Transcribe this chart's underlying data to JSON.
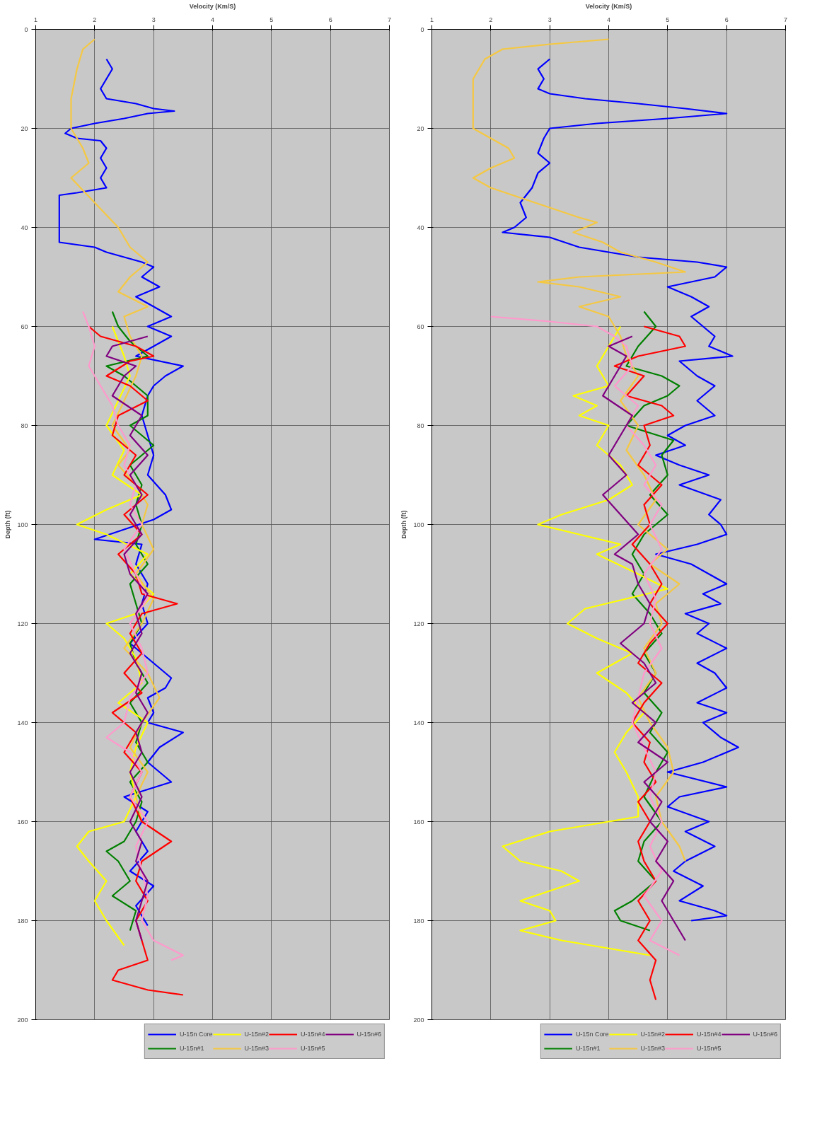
{
  "chart_data": [
    {
      "type": "line",
      "xlabel": "Velocity (Km/S)",
      "ylabel": "Depth (ft)",
      "xlim": [
        1,
        7
      ],
      "ylim": [
        200,
        0
      ],
      "xticks": [
        1,
        2,
        3,
        4,
        5,
        6,
        7
      ],
      "yticks": [
        0,
        20,
        40,
        60,
        80,
        100,
        120,
        140,
        160,
        180,
        200
      ],
      "grid": true,
      "legend": "bottom",
      "marker": "none",
      "line_style": "solid",
      "series": [
        {
          "name": "U-15n Core",
          "color": "#0000ff",
          "x": [
            2.2,
            2.3,
            2.2,
            2.1,
            2.2,
            2.7,
            3.0,
            3.35,
            2.9,
            2.5,
            2.0,
            1.6,
            1.5,
            1.7,
            2.1,
            2.2,
            2.1,
            2.2,
            2.1,
            2.2,
            1.7,
            1.4,
            1.4,
            1.4,
            1.4,
            2.0,
            2.2,
            2.8,
            3.0,
            2.8,
            3.1,
            2.7,
            3.0,
            3.3,
            2.9,
            3.3,
            3.0,
            2.7,
            3.5,
            3.2,
            3.0,
            2.9,
            2.8,
            2.9,
            3.0,
            2.9,
            3.2,
            3.3,
            3.0,
            2.5,
            2.0,
            2.8,
            2.7,
            2.9,
            2.8,
            2.9,
            2.6,
            3.0,
            3.3,
            3.2,
            2.9,
            3.0,
            2.9,
            3.5,
            3.1,
            2.9,
            3.3,
            2.5,
            2.9,
            2.7,
            2.9,
            2.6,
            3.0,
            2.7,
            2.9
          ],
          "values": [
            6,
            8,
            10,
            12,
            14,
            15,
            16,
            16.5,
            17,
            18,
            19,
            20,
            21,
            22,
            22.5,
            24,
            26,
            28,
            30,
            32,
            33,
            33.5,
            36,
            40,
            43,
            44,
            45,
            47,
            48,
            50,
            52,
            54,
            56,
            58,
            60,
            62,
            64,
            66,
            68,
            70,
            72,
            74,
            78,
            82,
            86,
            90,
            94,
            97,
            99,
            101,
            103,
            104,
            108,
            112,
            116,
            120,
            124,
            128,
            131,
            133,
            135,
            138,
            140,
            142,
            145,
            148,
            152,
            155,
            158,
            162,
            166,
            170,
            173,
            177,
            181
          ]
        },
        {
          "name": "U-15n#1",
          "color": "#008000",
          "x": [
            2.3,
            2.4,
            2.6,
            2.9,
            2.2,
            2.5,
            2.9,
            2.9,
            2.6,
            3.0,
            2.6,
            2.8,
            2.7,
            2.8,
            2.7,
            2.9,
            2.6,
            2.7,
            2.8,
            2.6,
            2.7,
            2.9,
            2.6,
            2.8,
            2.7,
            2.9,
            2.6,
            2.8,
            2.7,
            2.5,
            2.2,
            2.4,
            2.6,
            2.3,
            2.7,
            2.6
          ],
          "values": [
            57,
            60,
            63,
            66,
            68,
            70,
            74,
            78,
            80,
            84,
            88,
            92,
            96,
            100,
            104,
            108,
            112,
            116,
            120,
            124,
            128,
            132,
            136,
            140,
            144,
            148,
            152,
            156,
            160,
            164,
            166,
            168,
            172,
            175,
            178,
            182
          ]
        },
        {
          "name": "U-15n#2",
          "color": "#ffff00",
          "x": [
            2.3,
            2.5,
            2.6,
            2.4,
            2.2,
            2.5,
            2.3,
            2.8,
            2.2,
            1.7,
            2.2,
            2.9,
            2.6,
            3.0,
            2.7,
            2.2,
            2.5,
            2.7,
            2.8,
            2.4,
            2.9,
            2.7,
            2.6,
            2.7,
            2.5,
            1.9,
            1.7,
            1.9,
            2.2,
            2.0,
            2.2,
            2.5
          ],
          "values": [
            60,
            66,
            70,
            75,
            80,
            85,
            90,
            94,
            97,
            100,
            102,
            106,
            110,
            114,
            118,
            120,
            123,
            127,
            132,
            136,
            140,
            145,
            150,
            155,
            160,
            162,
            165,
            168,
            172,
            176,
            180,
            185
          ]
        },
        {
          "name": "U-15n#3",
          "color": "#f5c842",
          "x": [
            2.0,
            1.8,
            1.7,
            1.6,
            1.6,
            1.8,
            1.9,
            1.6,
            2.0,
            2.4,
            2.6,
            2.9,
            2.6,
            2.4,
            2.9,
            2.5,
            2.6,
            2.8,
            2.7,
            2.5,
            2.3,
            2.6,
            2.4,
            2.7,
            2.9,
            2.8,
            3.0,
            2.7,
            3.0,
            2.8,
            2.5,
            2.9,
            3.1,
            2.8,
            2.6,
            2.9,
            2.7,
            2.8
          ],
          "values": [
            2,
            4,
            8,
            14,
            20,
            24,
            27,
            30,
            35,
            40,
            44,
            47,
            50,
            53,
            56,
            58,
            62,
            66,
            70,
            75,
            80,
            85,
            88,
            92,
            96,
            100,
            105,
            110,
            115,
            120,
            125,
            130,
            135,
            140,
            145,
            150,
            155,
            160
          ]
        },
        {
          "name": "U-15n#4",
          "color": "#ff0000",
          "x": [
            1.9,
            2.1,
            2.7,
            3.0,
            2.6,
            2.2,
            2.6,
            2.9,
            2.4,
            2.3,
            2.7,
            2.5,
            2.9,
            2.5,
            2.8,
            2.4,
            2.7,
            2.8,
            3.4,
            2.8,
            2.6,
            2.8,
            2.5,
            2.8,
            2.3,
            2.7,
            2.5,
            2.8,
            2.6,
            2.8,
            3.3,
            2.8,
            2.7,
            2.9,
            2.7,
            2.8,
            2.9,
            2.4,
            2.3,
            2.9,
            3.5
          ],
          "values": [
            60,
            62,
            64,
            66,
            67,
            70,
            72,
            75,
            78,
            82,
            86,
            90,
            94,
            98,
            102,
            106,
            110,
            114,
            116,
            118,
            122,
            126,
            130,
            134,
            138,
            142,
            146,
            150,
            155,
            160,
            164,
            168,
            172,
            176,
            180,
            184,
            188,
            190,
            192,
            194,
            195
          ]
        },
        {
          "name": "U-15n#5",
          "color": "#ff99cc",
          "x": [
            1.8,
            1.9,
            2.0,
            1.9,
            2.1,
            2.3,
            2.4,
            2.6,
            2.5,
            2.7,
            2.6,
            2.8,
            2.5,
            2.7,
            2.9,
            2.6,
            2.8,
            2.9,
            2.6,
            2.5,
            2.2,
            2.6,
            2.8,
            2.6,
            2.9,
            2.7,
            2.8,
            2.9,
            2.8,
            3.0,
            3.5,
            3.3
          ],
          "values": [
            57,
            60,
            64,
            68,
            72,
            76,
            80,
            84,
            88,
            92,
            96,
            100,
            105,
            110,
            115,
            120,
            125,
            130,
            135,
            140,
            143,
            146,
            150,
            155,
            160,
            165,
            170,
            175,
            180,
            184,
            187,
            188
          ]
        },
        {
          "name": "U-15n#6",
          "color": "#800080",
          "x": [
            2.9,
            2.3,
            2.2,
            2.7,
            2.5,
            2.3,
            2.8,
            2.6,
            2.9,
            2.6,
            2.8,
            2.6,
            2.8,
            2.5,
            2.6,
            2.9,
            2.7,
            2.8,
            2.6,
            2.8,
            2.7,
            2.9,
            2.7,
            2.8,
            2.6,
            2.8,
            2.6,
            2.8,
            2.7,
            2.9,
            2.8,
            2.7,
            2.8
          ],
          "values": [
            62,
            64,
            66,
            68,
            70,
            74,
            78,
            82,
            86,
            90,
            94,
            98,
            102,
            106,
            110,
            114,
            118,
            122,
            126,
            130,
            134,
            138,
            142,
            146,
            150,
            155,
            160,
            164,
            168,
            172,
            176,
            180,
            184
          ]
        }
      ]
    },
    {
      "type": "line",
      "xlabel": "Velocity (Km/S)",
      "ylabel": "Depth (ft)",
      "xlim": [
        1,
        7
      ],
      "ylim": [
        200,
        0
      ],
      "xticks": [
        1,
        2,
        3,
        4,
        5,
        6,
        7
      ],
      "yticks": [
        0,
        20,
        40,
        60,
        80,
        100,
        120,
        140,
        160,
        180,
        200
      ],
      "grid": true,
      "legend": "bottom",
      "marker": "none",
      "line_style": "solid",
      "series": [
        {
          "name": "U-15n Core",
          "color": "#0000ff",
          "x": [
            3.0,
            2.8,
            2.9,
            2.8,
            3.0,
            3.6,
            4.5,
            5.3,
            6.0,
            5.0,
            3.8,
            3.0,
            2.9,
            2.8,
            3.0,
            2.8,
            2.7,
            2.5,
            2.6,
            2.4,
            2.2,
            3.0,
            3.5,
            4.5,
            5.5,
            6.0,
            5.8,
            5.0,
            5.4,
            5.7,
            5.4,
            5.6,
            5.8,
            5.7,
            6.1,
            5.2,
            5.5,
            5.8,
            5.5,
            5.8,
            5.3,
            5.0,
            5.3,
            4.8,
            5.2,
            5.7,
            5.2,
            5.9,
            5.7,
            5.9,
            6.0,
            5.5,
            4.8,
            5.4,
            5.7,
            6.0,
            5.6,
            5.9,
            5.3,
            5.7,
            5.5,
            6.0,
            5.5,
            5.8,
            6.0,
            5.5,
            6.0,
            5.6,
            5.9,
            6.2,
            5.6,
            5.0,
            6.0,
            5.2,
            5.0,
            5.7,
            5.3,
            5.8,
            5.3,
            5.1,
            5.6,
            5.2,
            5.8,
            6.0,
            5.4
          ],
          "values": [
            6,
            8,
            10,
            12,
            13,
            14,
            15,
            16,
            17,
            18,
            19,
            20,
            22,
            25,
            27,
            29,
            32,
            35,
            38,
            40,
            41,
            42,
            44,
            46,
            47,
            48,
            50,
            52,
            54,
            56,
            58,
            60,
            62,
            64,
            66,
            67,
            70,
            72,
            75,
            78,
            80,
            82,
            84,
            86,
            88,
            90,
            92,
            95,
            98,
            100,
            102,
            104,
            106,
            108,
            110,
            112,
            114,
            116,
            118,
            120,
            122,
            125,
            128,
            130,
            133,
            136,
            138,
            140,
            143,
            145,
            148,
            150,
            153,
            155,
            157,
            160,
            162,
            165,
            168,
            170,
            173,
            176,
            178,
            179,
            180
          ]
        },
        {
          "name": "U-15n#1",
          "color": "#008000",
          "x": [
            4.6,
            4.8,
            4.5,
            4.3,
            4.9,
            5.2,
            5.0,
            4.6,
            4.3,
            5.1,
            4.9,
            5.0,
            4.7,
            5.0,
            4.6,
            4.4,
            4.6,
            4.4,
            4.7,
            4.9,
            4.6,
            4.8,
            4.6,
            4.9,
            4.7,
            5.0,
            4.8,
            4.6,
            4.9,
            4.6,
            4.5,
            4.8,
            4.4,
            4.1,
            4.2,
            4.7
          ],
          "values": [
            57,
            60,
            64,
            68,
            70,
            72,
            74,
            76,
            80,
            83,
            86,
            90,
            94,
            98,
            102,
            106,
            110,
            114,
            118,
            122,
            126,
            130,
            134,
            138,
            142,
            146,
            150,
            155,
            160,
            164,
            168,
            172,
            176,
            178,
            180,
            182
          ]
        },
        {
          "name": "U-15n#2",
          "color": "#ffff00",
          "x": [
            4.2,
            4.0,
            3.8,
            4.0,
            3.4,
            3.8,
            3.5,
            4.0,
            3.8,
            4.2,
            4.4,
            4.0,
            3.2,
            2.8,
            3.5,
            4.2,
            3.8,
            4.5,
            5.0,
            4.3,
            3.6,
            3.3,
            3.8,
            4.4,
            3.8,
            4.3,
            4.6,
            4.3,
            4.1,
            4.3,
            4.5,
            4.5,
            4.0,
            3.0,
            2.2,
            2.5,
            3.2,
            3.5,
            3.0,
            2.5,
            3.0,
            3.1,
            2.5,
            3.2,
            4.2,
            4.7
          ],
          "values": [
            60,
            64,
            68,
            72,
            74,
            76,
            78,
            80,
            84,
            88,
            92,
            95,
            98,
            100,
            102,
            104,
            106,
            110,
            113,
            115,
            117,
            120,
            123,
            126,
            130,
            134,
            138,
            142,
            146,
            150,
            155,
            159,
            160,
            162,
            165,
            168,
            170,
            172,
            174,
            176,
            178,
            180,
            182,
            184,
            186,
            187
          ]
        },
        {
          "name": "U-15n#3",
          "color": "#f5c842",
          "x": [
            4.0,
            3.0,
            2.2,
            1.9,
            1.7,
            1.7,
            1.7,
            2.0,
            2.3,
            2.4,
            2.0,
            1.7,
            2.0,
            2.5,
            3.0,
            3.5,
            3.8,
            3.4,
            3.9,
            4.2,
            4.8,
            5.3,
            3.5,
            2.8,
            3.5,
            4.2,
            3.5,
            4.0,
            4.2,
            4.3,
            4.5,
            4.2,
            4.5,
            4.3,
            4.6,
            4.8,
            4.5,
            5.0,
            4.7,
            5.2,
            4.8,
            4.9,
            4.6,
            4.8,
            4.5,
            4.7,
            5.0,
            5.1,
            4.8,
            4.9,
            5.2,
            5.3
          ],
          "values": [
            2,
            3,
            4,
            6,
            10,
            15,
            20,
            22,
            24,
            26,
            28,
            30,
            32,
            34,
            36,
            38,
            39,
            41,
            43,
            45,
            47,
            49,
            50,
            51,
            52,
            54,
            56,
            58,
            62,
            66,
            70,
            75,
            80,
            85,
            90,
            95,
            100,
            105,
            108,
            112,
            116,
            120,
            125,
            130,
            135,
            140,
            145,
            150,
            155,
            160,
            165,
            168
          ]
        },
        {
          "name": "U-15n#4",
          "color": "#ff0000",
          "x": [
            4.6,
            5.2,
            5.3,
            4.5,
            4.1,
            4.6,
            4.3,
            4.9,
            5.1,
            4.6,
            4.7,
            4.5,
            4.9,
            4.6,
            4.7,
            4.4,
            4.7,
            4.9,
            4.7,
            5.0,
            4.7,
            4.5,
            4.9,
            4.6,
            4.4,
            4.7,
            4.6,
            4.8,
            4.5,
            4.7,
            4.5,
            4.6,
            4.8,
            4.5,
            4.7,
            4.5,
            4.8,
            4.7,
            4.8
          ],
          "values": [
            60,
            62,
            64,
            66,
            68,
            70,
            74,
            76,
            78,
            80,
            84,
            88,
            92,
            96,
            100,
            104,
            108,
            112,
            116,
            120,
            124,
            128,
            132,
            136,
            140,
            144,
            148,
            152,
            156,
            160,
            164,
            168,
            172,
            176,
            180,
            184,
            188,
            192,
            196
          ]
        },
        {
          "name": "U-15n#5",
          "color": "#ff99cc",
          "x": [
            2.0,
            3.0,
            3.8,
            4.1,
            4.3,
            4.4,
            4.1,
            4.5,
            4.3,
            4.6,
            4.8,
            4.6,
            4.9,
            4.7,
            4.9,
            4.6,
            4.8,
            4.7,
            4.9,
            4.6,
            4.5,
            4.4,
            4.6,
            4.8,
            4.7,
            4.9,
            4.7,
            4.9,
            4.6,
            4.9,
            4.7,
            5.2
          ],
          "values": [
            58,
            59,
            60,
            62,
            64,
            68,
            72,
            76,
            80,
            84,
            88,
            92,
            96,
            100,
            105,
            110,
            115,
            120,
            125,
            130,
            135,
            140,
            145,
            150,
            155,
            160,
            165,
            170,
            175,
            180,
            184,
            187
          ]
        },
        {
          "name": "U-15n#6",
          "color": "#800080",
          "x": [
            4.4,
            4.0,
            4.3,
            4.1,
            3.9,
            4.4,
            4.2,
            4.0,
            4.3,
            3.9,
            4.2,
            4.5,
            4.1,
            4.4,
            4.5,
            4.7,
            4.6,
            4.2,
            4.6,
            4.8,
            4.4,
            4.8,
            4.5,
            5.0,
            4.6,
            4.9,
            4.7,
            5.0,
            4.8,
            5.1,
            4.9,
            5.1,
            5.3
          ],
          "values": [
            62,
            64,
            66,
            70,
            74,
            78,
            82,
            86,
            90,
            94,
            98,
            102,
            106,
            108,
            112,
            116,
            120,
            124,
            128,
            132,
            136,
            140,
            144,
            148,
            152,
            156,
            160,
            164,
            168,
            172,
            176,
            180,
            184
          ]
        }
      ]
    }
  ]
}
